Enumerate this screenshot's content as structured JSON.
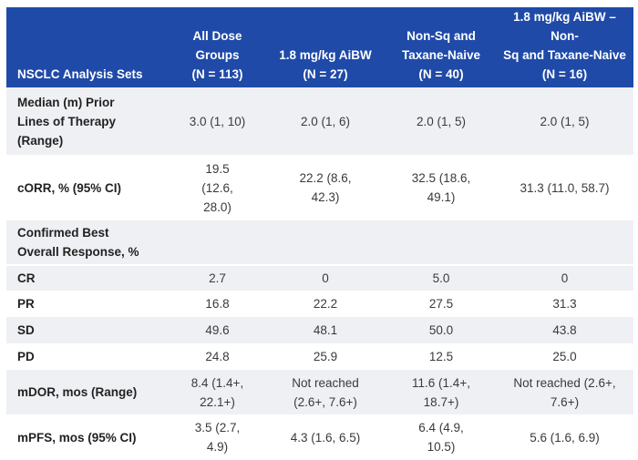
{
  "header": {
    "col0": "NSCLC Analysis Sets",
    "col1": [
      "All Dose",
      "Groups",
      "(N = 113)"
    ],
    "col2": [
      "1.8 mg/kg AiBW",
      "(N = 27)"
    ],
    "col3": [
      "Non-Sq and",
      "Taxane-Naive",
      "(N = 40)"
    ],
    "col4": [
      "1.8 mg/kg AiBW – Non-",
      "Sq and Taxane-Naive",
      "(N = 16)"
    ]
  },
  "rows": {
    "median": {
      "label": [
        "Median (m) Prior",
        "Lines of Therapy",
        "(Range)"
      ],
      "v1": [
        "3.0 (1, 10)"
      ],
      "v2": [
        "2.0 (1, 6)"
      ],
      "v3": [
        "2.0 (1, 5)"
      ],
      "v4": [
        "2.0 (1, 5)"
      ]
    },
    "corr": {
      "label": [
        "cORR, % (95% CI)"
      ],
      "v1": [
        "19.5",
        "(12.6,",
        "28.0)"
      ],
      "v2": [
        "22.2 (8.6,",
        "42.3)"
      ],
      "v3": [
        "32.5 (18.6,",
        "49.1)"
      ],
      "v4": [
        "31.3 (11.0, 58.7)"
      ]
    },
    "confirmed": {
      "label": [
        "Confirmed Best",
        "Overall Response, %"
      ]
    },
    "cr": {
      "label": [
        "CR"
      ],
      "v1": [
        "2.7"
      ],
      "v2": [
        "0"
      ],
      "v3": [
        "5.0"
      ],
      "v4": [
        "0"
      ]
    },
    "pr": {
      "label": [
        "PR"
      ],
      "v1": [
        "16.8"
      ],
      "v2": [
        "22.2"
      ],
      "v3": [
        "27.5"
      ],
      "v4": [
        "31.3"
      ]
    },
    "sd": {
      "label": [
        "SD"
      ],
      "v1": [
        "49.6"
      ],
      "v2": [
        "48.1"
      ],
      "v3": [
        "50.0"
      ],
      "v4": [
        "43.8"
      ]
    },
    "pd": {
      "label": [
        "PD"
      ],
      "v1": [
        "24.8"
      ],
      "v2": [
        "25.9"
      ],
      "v3": [
        "12.5"
      ],
      "v4": [
        "25.0"
      ]
    },
    "mdor": {
      "label": [
        "mDOR, mos (Range)"
      ],
      "v1": [
        "8.4 (1.4+,",
        "22.1+)"
      ],
      "v2": [
        "Not reached",
        "(2.6+, 7.6+)"
      ],
      "v3": [
        "11.6 (1.4+,",
        "18.7+)"
      ],
      "v4": [
        "Not reached (2.6+,",
        "7.6+)"
      ]
    },
    "mpfs": {
      "label": [
        "mPFS, mos (95% CI)"
      ],
      "v1": [
        "3.5 (2.7,",
        "4.9)"
      ],
      "v2": [
        "4.3 (1.6, 6.5)"
      ],
      "v3": [
        "6.4 (4.9,",
        "10.5)"
      ],
      "v4": [
        "5.6 (1.6, 6.9)"
      ]
    }
  }
}
